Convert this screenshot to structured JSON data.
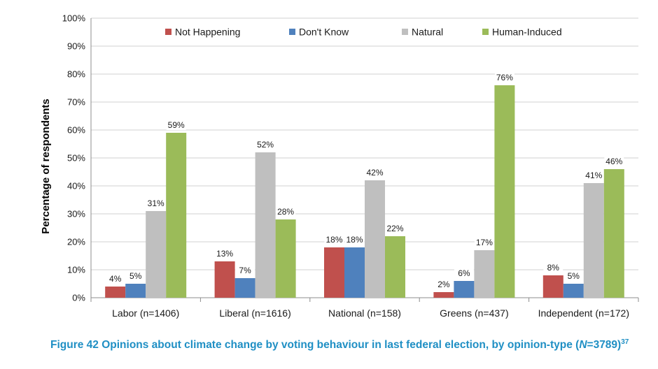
{
  "chart_data": {
    "type": "bar",
    "ylabel": "Percentage of respondents",
    "xlabel": "",
    "ylim": [
      0,
      100
    ],
    "yticks": [
      0,
      10,
      20,
      30,
      40,
      50,
      60,
      70,
      80,
      90,
      100
    ],
    "ytick_labels": [
      "0%",
      "10%",
      "20%",
      "30%",
      "40%",
      "50%",
      "60%",
      "70%",
      "80%",
      "90%",
      "100%"
    ],
    "grid": true,
    "legend_position": "top",
    "categories": [
      "Labor (n=1406)",
      "Liberal (n=1616)",
      "National (n=158)",
      "Greens (n=437)",
      "Independent (n=172)"
    ],
    "series": [
      {
        "name": "Not Happening",
        "color": "#c0504d",
        "values": [
          4,
          13,
          18,
          2,
          8
        ],
        "labels": [
          "4%",
          "13%",
          "18%",
          "2%",
          "8%"
        ]
      },
      {
        "name": "Don't Know",
        "color": "#4f81bd",
        "values": [
          5,
          7,
          18,
          6,
          5
        ],
        "labels": [
          "5%",
          "7%",
          "18%",
          "6%",
          "5%"
        ]
      },
      {
        "name": "Natural",
        "color": "#bfbfbf",
        "values": [
          31,
          52,
          42,
          17,
          41
        ],
        "labels": [
          "31%",
          "52%",
          "42%",
          "17%",
          "41%"
        ]
      },
      {
        "name": "Human-Induced",
        "color": "#9bbb59",
        "values": [
          59,
          28,
          22,
          76,
          46
        ],
        "labels": [
          "59%",
          "28%",
          "22%",
          "76%",
          "46%"
        ]
      }
    ]
  },
  "caption": {
    "prefix": "Figure 42 Opinions about climate change by voting behaviour in last federal election, by opinion-type (",
    "n_var": "N",
    "n_value": "=3789)",
    "footnote": "37"
  }
}
